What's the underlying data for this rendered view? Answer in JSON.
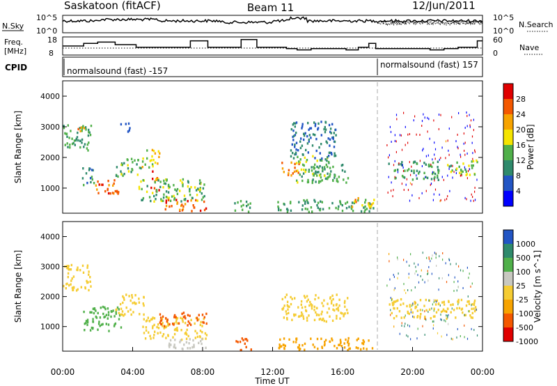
{
  "header": {
    "station": "Saskatoon (fitACF)",
    "beam": "Beam 11",
    "date": "12/Jun/2011"
  },
  "panels": {
    "nsky": {
      "left_label": "N.Sky",
      "left_ticks": [
        "10^5",
        "10^0"
      ],
      "right_label": "N.Search",
      "right_ticks": [
        "10^5",
        "10^0"
      ]
    },
    "freq": {
      "left_label_1": "Freq.",
      "left_label_2": "[MHz]",
      "left_ticks": [
        "18",
        "8"
      ],
      "right_label": "Nave",
      "right_ticks": [
        "60",
        "0"
      ]
    },
    "cpid": {
      "label": "CPID",
      "mode_1": "normalsound (fast) -157",
      "mode_2": "normalsound (fast) 157"
    }
  },
  "colors": {
    "power": [
      "#0000ff",
      "#2255c4",
      "#2f8a6c",
      "#50b04a",
      "#f5e400",
      "#f7a300",
      "#f45800",
      "#e00000"
    ],
    "velocity": [
      "#e00000",
      "#f45800",
      "#f7a300",
      "#f5cc33",
      "#c8c8c0",
      "#50b04a",
      "#2f8a6c",
      "#2255c4"
    ]
  },
  "chart_data": [
    {
      "type": "heatmap",
      "ylabel": "Slant Range [km]",
      "ylim": [
        180,
        4500
      ],
      "yticks": [
        "1000",
        "2000",
        "3000",
        "4000"
      ],
      "colorbar": {
        "label": "Power [dB]",
        "range": [
          0,
          32
        ],
        "ticks": [
          "4",
          "8",
          "12",
          "16",
          "20",
          "24",
          "28"
        ]
      },
      "regions": [
        {
          "t": [
            0.0,
            1.6
          ],
          "r": [
            2200,
            3100
          ],
          "value": 12
        },
        {
          "t": [
            0.8,
            1.3
          ],
          "r": [
            2800,
            3050
          ],
          "value": 24
        },
        {
          "t": [
            1.1,
            1.8
          ],
          "r": [
            1050,
            1700
          ],
          "value": 10
        },
        {
          "t": [
            1.8,
            3.3
          ],
          "r": [
            850,
            1350
          ],
          "value": 26
        },
        {
          "t": [
            3.0,
            4.6
          ],
          "r": [
            1400,
            2000
          ],
          "value": 14
        },
        {
          "t": [
            4.5,
            5.5
          ],
          "r": [
            1700,
            2300
          ],
          "value": 18
        },
        {
          "t": [
            5.0,
            5.5
          ],
          "r": [
            900,
            1600
          ],
          "value": 28
        },
        {
          "t": [
            4.3,
            8.2
          ],
          "r": [
            600,
            1350
          ],
          "value": 14
        },
        {
          "t": [
            5.8,
            8.2
          ],
          "r": [
            280,
            650
          ],
          "value": 26
        },
        {
          "t": [
            3.2,
            3.8
          ],
          "r": [
            2850,
            3250
          ],
          "value": 8
        },
        {
          "t": [
            9.8,
            10.8
          ],
          "r": [
            250,
            650
          ],
          "value": 12
        },
        {
          "t": [
            12.2,
            17.8
          ],
          "r": [
            250,
            650
          ],
          "value": 12
        },
        {
          "t": [
            16.5,
            17.8
          ],
          "r": [
            380,
            720
          ],
          "value": 22
        },
        {
          "t": [
            12.5,
            13.5
          ],
          "r": [
            1450,
            1900
          ],
          "value": 24
        },
        {
          "t": [
            13.3,
            15.2
          ],
          "r": [
            1200,
            2100
          ],
          "value": 14
        },
        {
          "t": [
            14.0,
            16.3
          ],
          "r": [
            1200,
            1800
          ],
          "value": 12
        },
        {
          "t": [
            13.0,
            15.6
          ],
          "r": [
            2000,
            3200
          ],
          "value": 8
        },
        {
          "t": [
            18.6,
            21.5
          ],
          "r": [
            1300,
            1900
          ],
          "value": 12
        },
        {
          "t": [
            21.8,
            23.7
          ],
          "r": [
            1450,
            1950
          ],
          "value": 14
        },
        {
          "t": [
            18.5,
            23.7
          ],
          "r": [
            600,
            3500
          ],
          "value": 6
        }
      ]
    },
    {
      "type": "heatmap",
      "ylabel": "Slant Range [km]",
      "xlabel": "Time UT",
      "xlim": [
        0,
        24
      ],
      "xticks": [
        "00:00",
        "04:00",
        "08:00",
        "12:00",
        "16:00",
        "20:00",
        "00:00"
      ],
      "ylim": [
        180,
        4500
      ],
      "yticks": [
        "1000",
        "2000",
        "3000",
        "4000"
      ],
      "colorbar": {
        "label": "Velocity [m s^-1]",
        "ticks": [
          "1000",
          "500",
          "100",
          "25",
          "-25",
          "-100",
          "-500",
          "-1000"
        ]
      },
      "regions": [
        {
          "t": [
            0.0,
            1.6
          ],
          "r": [
            2200,
            3100
          ],
          "value": 0
        },
        {
          "t": [
            1.1,
            3.3
          ],
          "r": [
            850,
            1700
          ],
          "value": 300
        },
        {
          "t": [
            3.0,
            4.6
          ],
          "r": [
            1400,
            2100
          ],
          "value": 0
        },
        {
          "t": [
            4.5,
            8.2
          ],
          "r": [
            600,
            1350
          ],
          "value": 0
        },
        {
          "t": [
            5.8,
            8.2
          ],
          "r": [
            280,
            650
          ],
          "value": 80
        },
        {
          "t": [
            5.5,
            8.2
          ],
          "r": [
            1050,
            1500
          ],
          "value": -150
        },
        {
          "t": [
            9.8,
            10.8
          ],
          "r": [
            250,
            650
          ],
          "value": -150
        },
        {
          "t": [
            12.2,
            17.8
          ],
          "r": [
            250,
            650
          ],
          "value": -50
        },
        {
          "t": [
            12.5,
            16.3
          ],
          "r": [
            1200,
            2100
          ],
          "value": 0
        },
        {
          "t": [
            18.6,
            23.7
          ],
          "r": [
            1300,
            1950
          ],
          "value": 0
        },
        {
          "t": [
            18.5,
            23.7
          ],
          "r": [
            600,
            3500
          ],
          "value": 600
        }
      ]
    }
  ],
  "time_axis": {
    "xlabel": "Time UT"
  }
}
